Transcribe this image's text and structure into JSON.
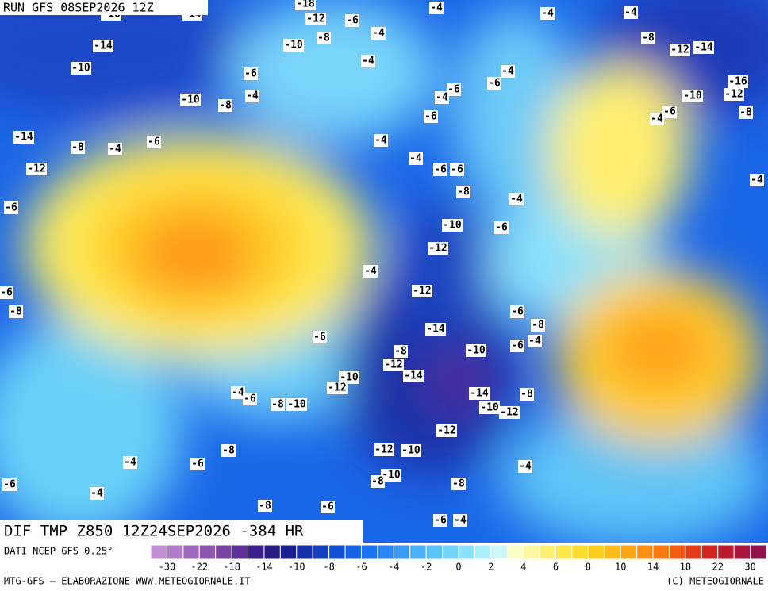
{
  "header": {
    "run": "RUN GFS 08SEP2026 12Z"
  },
  "map_title": "DIF TMP Z850 12Z24SEP2026 -384 HR",
  "source": "DATI NCEP GFS 0.25°",
  "footer_left": "MTG-GFS — ELABORAZIONE WWW.METEOGIORNALE.IT",
  "footer_right": "(C) METEOGIORNALE",
  "colorbar": {
    "colors": [
      "#c58fd8",
      "#b27ccb",
      "#a068bd",
      "#8e55b0",
      "#7a42a2",
      "#5e2f96",
      "#3b1f8c",
      "#261c86",
      "#1a2090",
      "#1530a8",
      "#1340c0",
      "#1250d6",
      "#1460e6",
      "#1a72f2",
      "#2a86f6",
      "#3a9af8",
      "#4aaefa",
      "#5cc2fb",
      "#72d4fc",
      "#8ae2fc",
      "#a8eefc",
      "#cff7fb",
      "#fefec8",
      "#fff8a0",
      "#fff170",
      "#ffe84a",
      "#ffdc2e",
      "#ffcc22",
      "#ffba1c",
      "#ffa618",
      "#ff9014",
      "#fb7812",
      "#f25c14",
      "#e43c18",
      "#d2241e",
      "#bc1a2e",
      "#a8163e",
      "#94124c"
    ],
    "ticks": [
      -30,
      -22,
      -18,
      -14,
      -10,
      -8,
      -6,
      -4,
      -2,
      0,
      2,
      4,
      6,
      8,
      10,
      14,
      18,
      22,
      30
    ]
  },
  "contour_labels": [
    "-18",
    "-12",
    "-6",
    "-4",
    "-4",
    "-4",
    "-14",
    "-16",
    "-14",
    "-10",
    "-8",
    "-4",
    "-8",
    "-12",
    "-14",
    "-10",
    "-6",
    "-4",
    "-4",
    "-16",
    "-12",
    "-10",
    "-8",
    "-4",
    "-6",
    "-4",
    "-6",
    "-10",
    "-6",
    "-4",
    "-8",
    "-6",
    "-14",
    "-8",
    "-4",
    "-6",
    "-4",
    "-4",
    "-6",
    "-6",
    "-12",
    "-8",
    "-4",
    "-4",
    "-6",
    "-10",
    "-6",
    "-12",
    "-4",
    "-12",
    "-6",
    "-8",
    "-6",
    "-8",
    "-14",
    "-6",
    "-8",
    "-10",
    "-6",
    "-4",
    "-12",
    "-10",
    "-14",
    "-12",
    "-4",
    "-6",
    "-14",
    "-8",
    "-8",
    "-10",
    "-10",
    "-12",
    "-12",
    "-12",
    "-10",
    "-8",
    "-4",
    "-6",
    "-4",
    "-10",
    "-8",
    "-8",
    "-6",
    "-4",
    "-8",
    "-6",
    "-6",
    "-4"
  ]
}
